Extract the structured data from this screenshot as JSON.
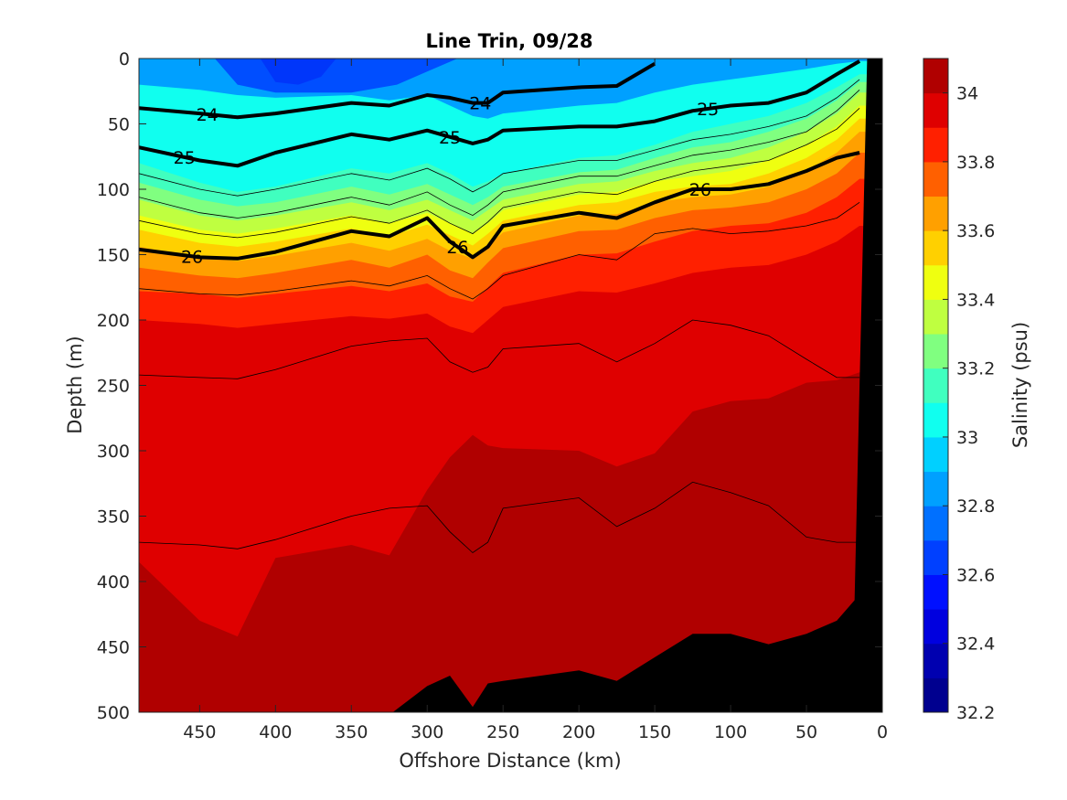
{
  "chart_data": {
    "type": "heatmap",
    "subtype": "filled contour section",
    "title": "Line Trin, 09/28",
    "xlabel": "Offshore Distance (km)",
    "ylabel": "Depth (m)",
    "xlim": [
      490,
      0
    ],
    "ylim": [
      0,
      500
    ],
    "x_reversed": true,
    "y_reversed": true,
    "x_ticks": [
      450,
      400,
      350,
      300,
      250,
      200,
      150,
      100,
      50,
      0
    ],
    "y_ticks": [
      0,
      50,
      100,
      150,
      200,
      250,
      300,
      350,
      400,
      450,
      500
    ],
    "colorbar": {
      "label": "Salinity (psu)",
      "range": [
        32.2,
        34.1
      ],
      "ticks": [
        32.2,
        32.4,
        32.6,
        32.8,
        33,
        33.2,
        33.4,
        33.6,
        33.8,
        34
      ],
      "levels": [
        32.2,
        32.3,
        32.4,
        32.5,
        32.6,
        32.7,
        32.8,
        32.9,
        33.0,
        33.1,
        33.2,
        33.3,
        33.4,
        33.5,
        33.6,
        33.7,
        33.8,
        33.9,
        34.0,
        34.1
      ],
      "colors": [
        "#00008F",
        "#0000B0",
        "#0000DF",
        "#0010FF",
        "#0040FF",
        "#0070FF",
        "#00A0FF",
        "#00D0FF",
        "#10FFEF",
        "#40FFBF",
        "#80FF80",
        "#BFFF40",
        "#EFFF10",
        "#FFD000",
        "#FFA000",
        "#FF6000",
        "#FF2000",
        "#DF0000",
        "#B00000"
      ]
    },
    "salinity_contour_boundaries": {
      "x_km": [
        490,
        450,
        425,
        400,
        350,
        325,
        300,
        285,
        270,
        260,
        250,
        200,
        175,
        150,
        125,
        100,
        75,
        50,
        30,
        15
      ],
      "33.0": [
        20,
        24,
        28,
        30,
        28,
        32,
        28,
        36,
        44,
        46,
        42,
        36,
        34,
        26,
        20,
        16,
        12,
        8,
        4,
        2
      ],
      "33.1": [
        80,
        95,
        102,
        98,
        84,
        88,
        80,
        88,
        98,
        94,
        88,
        76,
        74,
        66,
        56,
        50,
        44,
        34,
        22,
        12
      ],
      "33.2": [
        95,
        108,
        113,
        110,
        98,
        104,
        96,
        104,
        112,
        106,
        98,
        87,
        85,
        76,
        68,
        64,
        56,
        46,
        32,
        18
      ],
      "33.3": [
        108,
        120,
        124,
        120,
        110,
        116,
        108,
        116,
        124,
        116,
        108,
        96,
        94,
        86,
        80,
        76,
        68,
        56,
        42,
        26
      ],
      "33.4": [
        120,
        131,
        134,
        130,
        120,
        126,
        118,
        126,
        134,
        126,
        116,
        104,
        102,
        94,
        90,
        86,
        78,
        66,
        52,
        36
      ],
      "33.5": [
        131,
        141,
        144,
        140,
        130,
        136,
        127,
        135,
        143,
        134,
        124,
        112,
        110,
        102,
        98,
        96,
        88,
        76,
        62,
        46
      ],
      "33.6": [
        144,
        152,
        155,
        151,
        141,
        147,
        138,
        147,
        153,
        143,
        133,
        120,
        119,
        110,
        106,
        104,
        98,
        86,
        72,
        56
      ],
      "33.7": [
        160,
        166,
        168,
        164,
        154,
        160,
        150,
        162,
        168,
        156,
        145,
        132,
        131,
        122,
        116,
        114,
        110,
        100,
        88,
        72
      ],
      "33.8": [
        178,
        180,
        183,
        180,
        174,
        178,
        172,
        182,
        186,
        175,
        164,
        150,
        149,
        140,
        132,
        128,
        126,
        118,
        106,
        92
      ],
      "33.9": [
        200,
        203,
        206,
        203,
        197,
        199,
        195,
        205,
        210,
        200,
        190,
        178,
        179,
        172,
        164,
        160,
        158,
        150,
        140,
        128
      ],
      "34.0": [
        385,
        430,
        442,
        382,
        372,
        380,
        330,
        305,
        288,
        296,
        298,
        300,
        312,
        302,
        270,
        262,
        260,
        248,
        246,
        240
      ],
      "34.1": [
        502,
        502,
        502,
        502,
        502,
        502,
        480,
        472,
        496,
        478,
        476,
        468,
        476,
        458,
        440,
        440,
        448,
        440,
        430,
        410
      ]
    },
    "density_contours": {
      "labeled_levels": [
        "24",
        "25",
        "26"
      ],
      "x_km": [
        490,
        450,
        425,
        400,
        350,
        325,
        300,
        285,
        270,
        260,
        250,
        200,
        175,
        150,
        125,
        100,
        75,
        50,
        30,
        15
      ],
      "24": [
        38,
        42,
        45,
        42,
        34,
        36,
        28,
        30,
        34,
        34,
        26,
        22,
        21,
        4,
        null,
        null,
        null,
        null,
        null,
        null
      ],
      "25": [
        68,
        78,
        82,
        72,
        58,
        62,
        55,
        60,
        65,
        62,
        55,
        52,
        52,
        48,
        40,
        36,
        34,
        26,
        12,
        2
      ],
      "26": [
        146,
        152,
        153,
        148,
        132,
        136,
        122,
        140,
        152,
        144,
        128,
        118,
        122,
        110,
        100,
        100,
        96,
        86,
        76,
        72
      ]
    },
    "thin_isopycnals_depth_m": {
      "x_km": [
        490,
        450,
        425,
        400,
        350,
        325,
        300,
        285,
        270,
        260,
        250,
        200,
        175,
        150,
        125,
        100,
        75,
        50,
        30,
        15
      ],
      "lines": [
        [
          88,
          100,
          105,
          100,
          88,
          93,
          84,
          92,
          102,
          96,
          88,
          78,
          78,
          70,
          62,
          58,
          52,
          44,
          30,
          16
        ],
        [
          106,
          118,
          122,
          118,
          106,
          112,
          102,
          112,
          120,
          112,
          102,
          90,
          90,
          82,
          74,
          70,
          64,
          56,
          40,
          24
        ],
        [
          124,
          134,
          137,
          133,
          121,
          126,
          116,
          126,
          134,
          125,
          114,
          102,
          104,
          94,
          86,
          82,
          78,
          66,
          54,
          38
        ],
        [
          176,
          180,
          181,
          178,
          170,
          174,
          166,
          176,
          184,
          176,
          166,
          150,
          154,
          134,
          130,
          134,
          132,
          128,
          122,
          110
        ],
        [
          242,
          244,
          245,
          238,
          220,
          216,
          214,
          232,
          240,
          236,
          222,
          218,
          232,
          218,
          200,
          204,
          212,
          230,
          244,
          244
        ],
        [
          370,
          372,
          375,
          368,
          350,
          344,
          342,
          362,
          378,
          370,
          344,
          336,
          358,
          344,
          324,
          332,
          342,
          366,
          370,
          370
        ]
      ]
    },
    "topography": {
      "note": "black seafloor wedge on the right side",
      "edge_x_km": [
        20,
        10
      ],
      "edge_depth_m": [
        500,
        0
      ]
    }
  }
}
